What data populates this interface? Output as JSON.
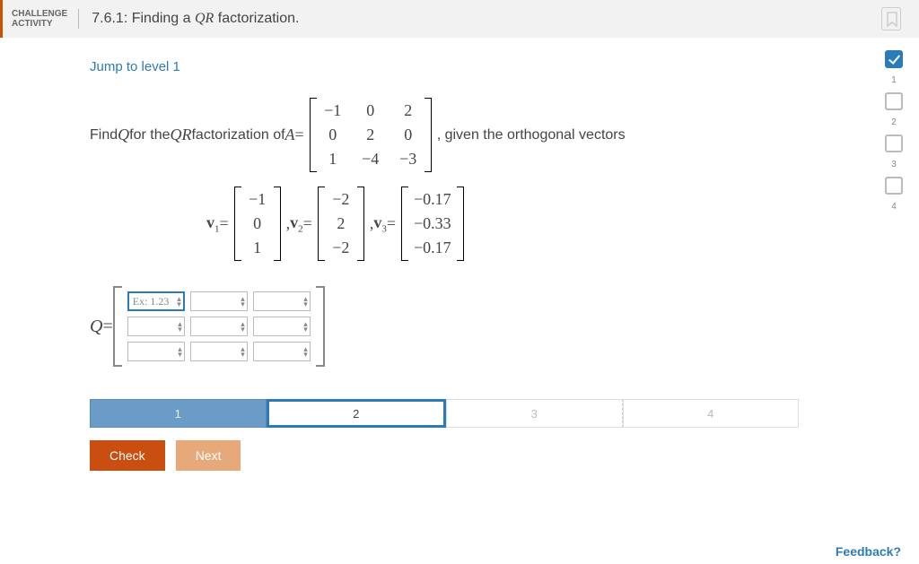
{
  "header": {
    "badge_line1": "CHALLENGE",
    "badge_line2": "ACTIVITY",
    "number": "7.6.1:",
    "title_prefix": "Finding a ",
    "title_QR": "QR",
    "title_suffix": " factorization."
  },
  "jump_link": "Jump to level 1",
  "problem": {
    "prefix": "Find ",
    "Q": "Q",
    "mid1": " for the ",
    "QR": "QR",
    "mid2": " factorization of ",
    "A": "A",
    "eq": " = ",
    "suffix": ", given the orthogonal vectors",
    "A_matrix": {
      "rows": [
        [
          "−1",
          "0",
          "2"
        ],
        [
          "0",
          "2",
          "0"
        ],
        [
          "1",
          "−4",
          "−3"
        ]
      ],
      "cols": 3
    }
  },
  "vectors": {
    "v1_label": "v",
    "v1_sub": "1",
    "v1": [
      "−1",
      "0",
      "1"
    ],
    "v2_label": "v",
    "v2_sub": "2",
    "v2": [
      "−2",
      "2",
      "−2"
    ],
    "v3_label": "v",
    "v3_sub": "3",
    "v3": [
      "−0.17",
      "−0.33",
      "−0.17"
    ],
    "eq": " = ",
    "comma": ", "
  },
  "q_input": {
    "Q": "Q",
    "eq": " = ",
    "rows": 3,
    "cols": 3,
    "placeholder": "Ex: 1.23",
    "selected_row": 0,
    "selected_col": 0
  },
  "progress": {
    "steps": [
      "1",
      "2",
      "3",
      "4"
    ],
    "current_index": 1
  },
  "buttons": {
    "check": "Check",
    "next": "Next"
  },
  "tracker": {
    "items": [
      {
        "done": true,
        "label": "1"
      },
      {
        "done": false,
        "label": "2"
      },
      {
        "done": false,
        "label": "3"
      },
      {
        "done": false,
        "label": "4"
      }
    ]
  },
  "feedback": "Feedback?",
  "colors": {
    "accent_orange": "#c94e0f",
    "accent_blue": "#2b7bb9",
    "step_done_bg": "#6a9cc7",
    "next_btn": "#e8a97a"
  }
}
